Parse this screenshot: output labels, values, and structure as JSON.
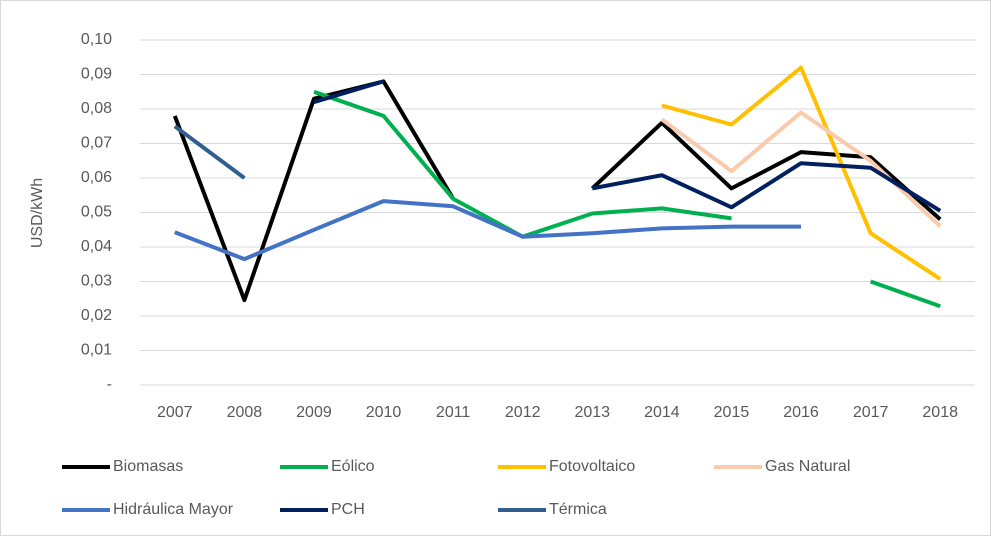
{
  "chart_data": {
    "type": "line",
    "y_axis_label": "USD/kWh",
    "categories": [
      "2007",
      "2008",
      "2009",
      "2010",
      "2011",
      "2012",
      "2013",
      "2014",
      "2015",
      "2016",
      "2017",
      "2018"
    ],
    "series": [
      {
        "name": "Biomasas",
        "color": "#000000",
        "values": [
          0.078,
          0.0246,
          0.083,
          0.088,
          0.054,
          null,
          0.057,
          0.076,
          0.057,
          0.0675,
          0.066,
          0.048
        ]
      },
      {
        "name": "Eólico",
        "color": "#00b050",
        "values": [
          null,
          null,
          0.085,
          0.078,
          0.054,
          0.043,
          0.0497,
          0.0512,
          0.0483,
          null,
          0.03,
          0.0228
        ]
      },
      {
        "name": "Fotovoltaico",
        "color": "#ffc000",
        "values": [
          null,
          null,
          null,
          null,
          null,
          null,
          null,
          0.081,
          0.0755,
          0.092,
          0.044,
          0.0307
        ]
      },
      {
        "name": "Gas Natural",
        "color": "#f8cbad",
        "values": [
          null,
          null,
          null,
          null,
          null,
          null,
          null,
          0.077,
          0.062,
          0.079,
          0.065,
          0.046
        ]
      },
      {
        "name": "Hidráulica Mayor",
        "color": "#4472c4",
        "values": [
          0.0443,
          0.0365,
          0.045,
          0.0533,
          0.0518,
          0.043,
          0.044,
          0.0454,
          0.0459,
          0.0459,
          null,
          null
        ]
      },
      {
        "name": "PCH",
        "color": "#002060",
        "values": [
          null,
          null,
          0.082,
          0.088,
          null,
          null,
          0.057,
          0.0608,
          0.0515,
          0.0643,
          0.063,
          0.0505
        ]
      },
      {
        "name": "Térmica",
        "color": "#2f5f8f",
        "values": [
          0.075,
          0.06,
          null,
          null,
          null,
          null,
          null,
          null,
          null,
          null,
          null,
          null
        ]
      }
    ],
    "ylim": [
      0,
      0.1
    ],
    "yticks": [
      {
        "value": 0,
        "label": "-"
      },
      {
        "value": 0.01,
        "label": "0,01"
      },
      {
        "value": 0.02,
        "label": "0,02"
      },
      {
        "value": 0.03,
        "label": "0,03"
      },
      {
        "value": 0.04,
        "label": "0,04"
      },
      {
        "value": 0.05,
        "label": "0,05"
      },
      {
        "value": 0.06,
        "label": "0,06"
      },
      {
        "value": 0.07,
        "label": "0,07"
      },
      {
        "value": 0.08,
        "label": "0,08"
      },
      {
        "value": 0.09,
        "label": "0,09"
      },
      {
        "value": 0.1,
        "label": "0,10"
      }
    ],
    "grid": true,
    "legend": "bottom"
  }
}
